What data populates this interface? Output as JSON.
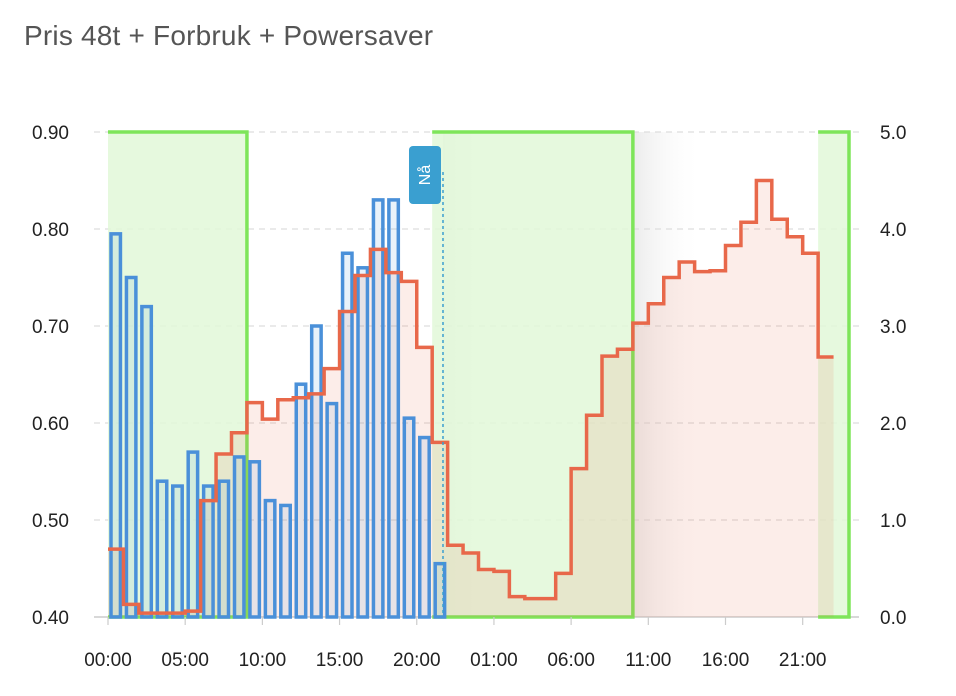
{
  "chart_data": {
    "type": "line",
    "title": "Pris 48t + Forbruk + Powersaver",
    "x_tick_labels": [
      "00:00",
      "05:00",
      "10:00",
      "15:00",
      "20:00",
      "01:00",
      "06:00",
      "11:00",
      "16:00",
      "21:00"
    ],
    "x_tick_hours": [
      0,
      5,
      10,
      15,
      20,
      25,
      30,
      35,
      40,
      45
    ],
    "x_range_hours": [
      0,
      48
    ],
    "y_left": {
      "range": [
        0.4,
        0.9
      ],
      "ticks": [
        "0.90",
        "0.80",
        "0.70",
        "0.60",
        "0.50",
        "0.40"
      ]
    },
    "y_right": {
      "range": [
        0,
        5
      ],
      "ticks": [
        "5.0",
        "4.0",
        "3.0",
        "2.0",
        "1.0",
        "0.0"
      ]
    },
    "now_marker": {
      "label": "Nå",
      "hour": 21.7
    },
    "price_series": {
      "color": "#e8684a",
      "axis": "left",
      "values": [
        0.47,
        0.413,
        0.404,
        0.404,
        0.404,
        0.406,
        0.52,
        0.568,
        0.59,
        0.621,
        0.604,
        0.624,
        0.626,
        0.63,
        0.656,
        0.715,
        0.752,
        0.779,
        0.755,
        0.746,
        0.678,
        0.58,
        0.474,
        0.466,
        0.449,
        0.447,
        0.421,
        0.419,
        0.419,
        0.445,
        0.553,
        0.608,
        0.669,
        0.676,
        0.703,
        0.723,
        0.75,
        0.766,
        0.756,
        0.757,
        0.783,
        0.807,
        0.85,
        0.81,
        0.792,
        0.775,
        0.668
      ]
    },
    "consumption_series": {
      "color": "#4a90d9",
      "axis": "right",
      "values": [
        3.95,
        3.5,
        3.2,
        1.4,
        1.35,
        1.7,
        1.35,
        1.4,
        1.65,
        1.6,
        1.2,
        1.15,
        2.4,
        3.0,
        2.2,
        3.75,
        3.6,
        4.3,
        4.3,
        2.05,
        1.85,
        0.55
      ]
    },
    "powersaver_periods_hours": [
      [
        0,
        9
      ],
      [
        21,
        34
      ],
      [
        46,
        48
      ]
    ],
    "colors": {
      "powersaver_line": "#7ee55a",
      "powersaver_fill": "#e2f8d8",
      "grid": "#dddddd"
    }
  }
}
